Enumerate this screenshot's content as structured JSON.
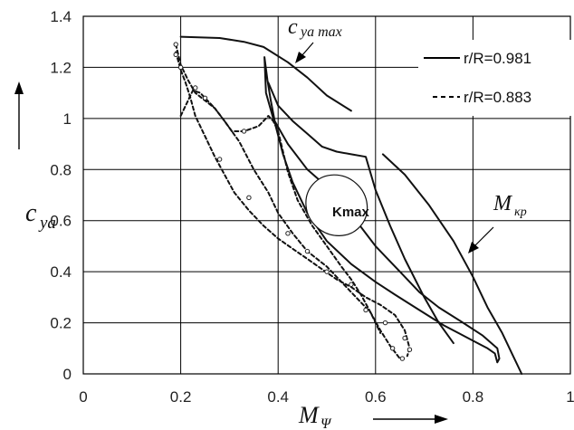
{
  "chart_data": {
    "type": "line",
    "xlim": [
      0,
      1
    ],
    "ylim": [
      0,
      1.4
    ],
    "x_ticks": [
      "0",
      "0.2",
      "0.4",
      "0.6",
      "0.8",
      "1"
    ],
    "y_ticks": [
      "0",
      "0.2",
      "0.4",
      "0.6",
      "0.8",
      "1",
      "1.2",
      "1.4"
    ],
    "grid": true,
    "legend_position": "top-right",
    "xlabel": {
      "main": "M",
      "sub": "Ψ"
    },
    "ylabel": {
      "main": "c",
      "sub": "ya"
    },
    "annotations": {
      "cya_max": {
        "main": "c",
        "sub": "ya max"
      },
      "m_kp": {
        "main": "M",
        "sub": "κp"
      },
      "kmax": "Kmax"
    },
    "series": [
      {
        "name": "r/R=0.981",
        "style": "solid",
        "segments": [
          [
            [
              0.2,
              1.32
            ],
            [
              0.28,
              1.315
            ],
            [
              0.33,
              1.3
            ],
            [
              0.37,
              1.28
            ],
            [
              0.42,
              1.22
            ],
            [
              0.46,
              1.16
            ],
            [
              0.5,
              1.09
            ],
            [
              0.55,
              1.03
            ]
          ],
          [
            [
              0.372,
              1.24
            ],
            [
              0.375,
              1.1
            ],
            [
              0.39,
              1.0
            ],
            [
              0.42,
              0.9
            ],
            [
              0.46,
              0.8
            ],
            [
              0.52,
              0.7
            ],
            [
              0.56,
              0.6
            ],
            [
              0.6,
              0.5
            ],
            [
              0.65,
              0.4
            ],
            [
              0.69,
              0.32
            ],
            [
              0.73,
              0.26
            ],
            [
              0.78,
              0.2
            ],
            [
              0.82,
              0.15
            ],
            [
              0.85,
              0.1
            ],
            [
              0.854,
              0.06
            ],
            [
              0.85,
              0.045
            ],
            [
              0.845,
              0.08
            ],
            [
              0.83,
              0.1
            ],
            [
              0.79,
              0.14
            ],
            [
              0.74,
              0.19
            ],
            [
              0.69,
              0.25
            ],
            [
              0.64,
              0.31
            ],
            [
              0.6,
              0.36
            ],
            [
              0.55,
              0.43
            ],
            [
              0.5,
              0.52
            ],
            [
              0.46,
              0.63
            ],
            [
              0.43,
              0.75
            ],
            [
              0.41,
              0.86
            ],
            [
              0.395,
              0.97
            ],
            [
              0.385,
              1.07
            ],
            [
              0.378,
              1.15
            ],
            [
              0.372,
              1.24
            ]
          ],
          [
            [
              0.38,
              1.14
            ],
            [
              0.4,
              1.05
            ],
            [
              0.43,
              0.99
            ],
            [
              0.46,
              0.94
            ],
            [
              0.49,
              0.89
            ],
            [
              0.52,
              0.87
            ],
            [
              0.55,
              0.86
            ],
            [
              0.58,
              0.85
            ],
            [
              0.6,
              0.72
            ],
            [
              0.63,
              0.58
            ],
            [
              0.66,
              0.45
            ],
            [
              0.7,
              0.3
            ],
            [
              0.73,
              0.2
            ],
            [
              0.76,
              0.12
            ]
          ],
          [
            [
              0.615,
              0.86
            ],
            [
              0.66,
              0.78
            ],
            [
              0.71,
              0.66
            ],
            [
              0.76,
              0.52
            ],
            [
              0.8,
              0.38
            ],
            [
              0.83,
              0.26
            ],
            [
              0.86,
              0.16
            ],
            [
              0.88,
              0.08
            ],
            [
              0.9,
              0.0
            ]
          ]
        ]
      },
      {
        "name": "r/R=0.883",
        "style": "dashed",
        "segments": [
          [
            [
              0.19,
              1.29
            ],
            [
              0.2,
              1.21
            ],
            [
              0.215,
              1.15
            ],
            [
              0.23,
              1.1
            ],
            [
              0.25,
              1.07
            ],
            [
              0.27,
              1.04
            ],
            [
              0.29,
              0.99
            ],
            [
              0.32,
              0.91
            ],
            [
              0.35,
              0.8
            ],
            [
              0.38,
              0.71
            ],
            [
              0.4,
              0.63
            ],
            [
              0.43,
              0.55
            ],
            [
              0.46,
              0.48
            ],
            [
              0.5,
              0.42
            ],
            [
              0.53,
              0.36
            ],
            [
              0.56,
              0.3
            ],
            [
              0.59,
              0.24
            ],
            [
              0.61,
              0.17
            ],
            [
              0.63,
              0.11
            ],
            [
              0.65,
              0.06
            ]
          ],
          [
            [
              0.19,
              1.26
            ],
            [
              0.2,
              1.19
            ],
            [
              0.21,
              1.14
            ],
            [
              0.22,
              1.08
            ],
            [
              0.23,
              1.01
            ],
            [
              0.25,
              0.93
            ],
            [
              0.27,
              0.85
            ],
            [
              0.29,
              0.78
            ],
            [
              0.31,
              0.71
            ],
            [
              0.34,
              0.64
            ],
            [
              0.37,
              0.58
            ],
            [
              0.4,
              0.53
            ],
            [
              0.43,
              0.49
            ],
            [
              0.46,
              0.45
            ],
            [
              0.49,
              0.41
            ],
            [
              0.52,
              0.37
            ],
            [
              0.55,
              0.34
            ],
            [
              0.58,
              0.3
            ],
            [
              0.61,
              0.27
            ],
            [
              0.64,
              0.23
            ],
            [
              0.66,
              0.17
            ],
            [
              0.67,
              0.1
            ],
            [
              0.665,
              0.07
            ]
          ],
          [
            [
              0.2,
              1.01
            ],
            [
              0.215,
              1.07
            ],
            [
              0.225,
              1.11
            ],
            [
              0.24,
              1.1
            ],
            [
              0.255,
              1.07
            ],
            [
              0.27,
              1.04
            ],
            [
              0.29,
              0.99
            ],
            [
              0.305,
              0.95
            ],
            [
              0.33,
              0.95
            ],
            [
              0.36,
              0.97
            ],
            [
              0.38,
              1.01
            ],
            [
              0.39,
              0.99
            ],
            [
              0.4,
              0.95
            ],
            [
              0.41,
              0.87
            ],
            [
              0.42,
              0.79
            ],
            [
              0.44,
              0.68
            ],
            [
              0.47,
              0.58
            ],
            [
              0.5,
              0.5
            ],
            [
              0.53,
              0.42
            ],
            [
              0.55,
              0.37
            ],
            [
              0.57,
              0.31
            ],
            [
              0.59,
              0.24
            ],
            [
              0.61,
              0.16
            ]
          ]
        ],
        "markers": [
          [
            0.19,
            1.29
          ],
          [
            0.19,
            1.25
          ],
          [
            0.2,
            1.2
          ],
          [
            0.23,
            1.12
          ],
          [
            0.25,
            1.08
          ],
          [
            0.33,
            0.95
          ],
          [
            0.28,
            0.84
          ],
          [
            0.34,
            0.69
          ],
          [
            0.42,
            0.55
          ],
          [
            0.55,
            0.35
          ],
          [
            0.58,
            0.25
          ],
          [
            0.62,
            0.2
          ],
          [
            0.635,
            0.1
          ],
          [
            0.655,
            0.06
          ],
          [
            0.67,
            0.095
          ],
          [
            0.66,
            0.14
          ],
          [
            0.5,
            0.4
          ],
          [
            0.46,
            0.48
          ]
        ]
      }
    ],
    "kmax_region": {
      "center": [
        0.52,
        0.66
      ],
      "rx": 0.065,
      "ry": 0.115
    }
  }
}
